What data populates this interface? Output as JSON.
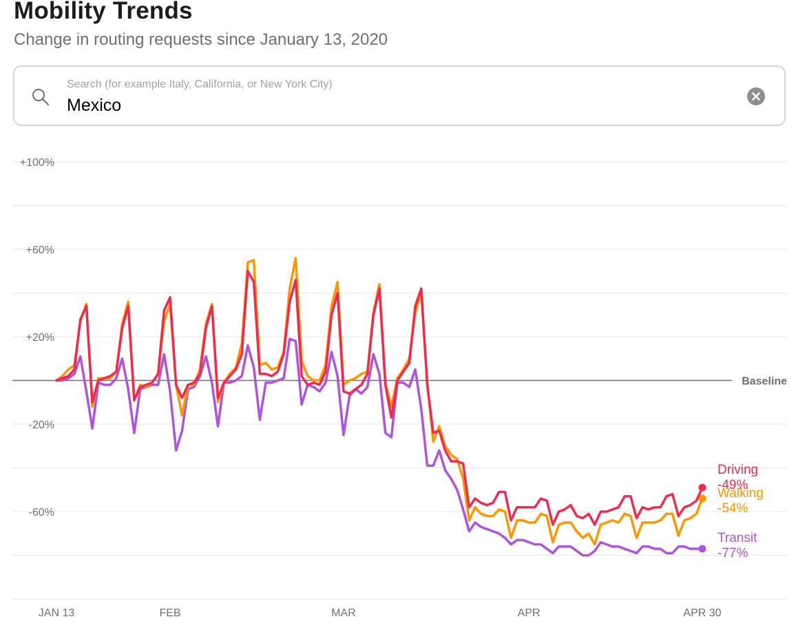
{
  "header": {
    "title": "Mobility Trends",
    "subtitle": "Change in routing requests since January 13, 2020"
  },
  "search": {
    "placeholder": "Search (for example Italy, California, or New York City)",
    "value": "Mexico",
    "search_icon": "search-icon",
    "clear_icon": "clear-icon"
  },
  "colors": {
    "driving": "#f2294f",
    "walking": "#ff9500",
    "transit": "#af52de",
    "grid": "#e5e5ea",
    "baseline": "#6e6e73"
  },
  "chart_data": {
    "type": "line",
    "title": "Mobility Trends",
    "subtitle": "Change in routing requests since January 13, 2020",
    "region": "Mexico",
    "xlabel": "",
    "ylabel": "",
    "ylim": [
      -100,
      100
    ],
    "y_ticks": [
      {
        "value": 100,
        "label": "+100%"
      },
      {
        "value": 60,
        "label": "+60%"
      },
      {
        "value": 20,
        "label": "+20%"
      },
      {
        "value": -20,
        "label": "-20%"
      },
      {
        "value": -60,
        "label": "-60%"
      }
    ],
    "y_gridlines": [
      100,
      80,
      60,
      40,
      20,
      -20,
      -40,
      -60,
      -80,
      -100
    ],
    "baseline": {
      "value": 0,
      "label": "Baseline"
    },
    "x_ticks": [
      {
        "day": 0,
        "label": "JAN 13"
      },
      {
        "day": 19,
        "label": "FEB"
      },
      {
        "day": 48,
        "label": "MAR"
      },
      {
        "day": 79,
        "label": "APR"
      },
      {
        "day": 108,
        "label": "APR 30"
      }
    ],
    "x_range": [
      0,
      108
    ],
    "series": [
      {
        "name": "Driving",
        "key": "driving",
        "final_label": "-49%",
        "values": [
          0,
          1,
          2,
          5,
          28,
          34,
          -10,
          0,
          1,
          2,
          4,
          24,
          34,
          -9,
          -3,
          -2,
          -1,
          3,
          32,
          38,
          -2,
          -8,
          -2,
          -1,
          3,
          24,
          34,
          -8,
          -1,
          2,
          5,
          12,
          50,
          45,
          3,
          3,
          2,
          4,
          12,
          36,
          46,
          2,
          -2,
          -1,
          -2,
          4,
          30,
          40,
          -5,
          -6,
          -4,
          -2,
          3,
          30,
          42,
          -2,
          -17,
          0,
          4,
          8,
          34,
          42,
          -2,
          -24,
          -23,
          -32,
          -37,
          -37,
          -38,
          -58,
          -54,
          -56,
          -57,
          -56,
          -51,
          -51,
          -64,
          -58,
          -58,
          -58,
          -58,
          -54,
          -55,
          -66,
          -60,
          -59,
          -57,
          -62,
          -63,
          -61,
          -66,
          -60,
          -60,
          -59,
          -58,
          -53,
          -53,
          -63,
          -58,
          -59,
          -58,
          -58,
          -53,
          -52,
          -62,
          -58,
          -57,
          -55,
          -49
        ]
      },
      {
        "name": "Walking",
        "key": "walking",
        "final_label": "-54%",
        "values": [
          0,
          2,
          5,
          7,
          27,
          35,
          -12,
          1,
          1,
          1,
          4,
          26,
          36,
          -9,
          -2,
          -3,
          -1,
          3,
          27,
          35,
          -2,
          -16,
          -2,
          -2,
          5,
          26,
          35,
          -10,
          -1,
          3,
          6,
          17,
          54,
          55,
          7,
          8,
          5,
          6,
          13,
          42,
          56,
          9,
          2,
          0,
          0,
          7,
          34,
          45,
          -2,
          0,
          1,
          3,
          4,
          31,
          44,
          -1,
          -12,
          1,
          5,
          10,
          31,
          40,
          -1,
          -28,
          -21,
          -30,
          -34,
          -36,
          -45,
          -64,
          -58,
          -61,
          -62,
          -62,
          -59,
          -60,
          -72,
          -64,
          -64,
          -65,
          -65,
          -61,
          -62,
          -74,
          -66,
          -65,
          -65,
          -69,
          -72,
          -70,
          -75,
          -66,
          -65,
          -64,
          -65,
          -61,
          -62,
          -72,
          -65,
          -65,
          -65,
          -64,
          -61,
          -61,
          -71,
          -64,
          -63,
          -61,
          -54
        ]
      },
      {
        "name": "Transit",
        "key": "transit",
        "final_label": "-77%",
        "values": [
          0,
          0,
          1,
          3,
          11,
          -5,
          -22,
          -1,
          -2,
          -2,
          1,
          10,
          -4,
          -24,
          -4,
          -3,
          -2,
          -2,
          12,
          -5,
          -32,
          -23,
          -4,
          -3,
          2,
          11,
          -1,
          -21,
          -1,
          -1,
          0,
          2,
          16,
          6,
          -18,
          -1,
          -1,
          0,
          1,
          19,
          18,
          -11,
          -2,
          -3,
          -5,
          -1,
          13,
          2,
          -25,
          -7,
          -4,
          -6,
          -3,
          12,
          3,
          -24,
          -26,
          -1,
          -1,
          -3,
          5,
          -13,
          -39,
          -39,
          -32,
          -41,
          -45,
          -50,
          -59,
          -69,
          -65,
          -67,
          -68,
          -69,
          -70,
          -72,
          -75,
          -73,
          -73,
          -74,
          -75,
          -75,
          -77,
          -79,
          -76,
          -76,
          -76,
          -78,
          -80,
          -80,
          -78,
          -74,
          -75,
          -76,
          -76,
          -77,
          -78,
          -79,
          -76,
          -76,
          -77,
          -77,
          -79,
          -79,
          -76,
          -76,
          -77,
          -77,
          -77
        ]
      }
    ]
  }
}
